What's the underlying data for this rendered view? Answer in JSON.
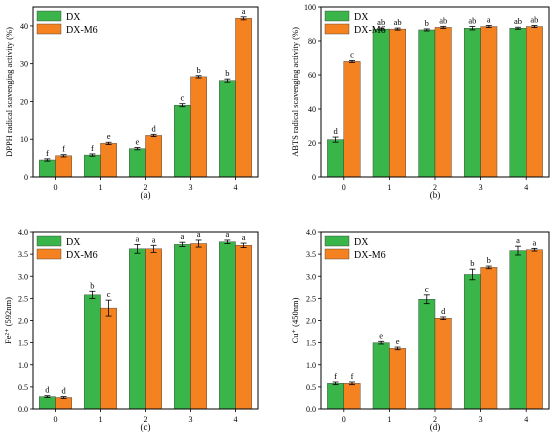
{
  "legend_labels": [
    "DX",
    "DX-M6"
  ],
  "colors": {
    "DX": "#3ab54a",
    "DX-M6": "#f58220",
    "axis": "#000000"
  },
  "chart_data": [
    {
      "type": "bar",
      "panel_label": "(a)",
      "ylabel": "DPPH radical scavenging activity (%)",
      "xlabel": "",
      "categories": [
        "0",
        "1",
        "2",
        "3",
        "4"
      ],
      "ylim": [
        0,
        45
      ],
      "yticks": [
        0,
        10,
        20,
        30,
        40
      ],
      "series": [
        {
          "name": "DX",
          "values": [
            4.5,
            5.8,
            7.5,
            19.0,
            25.5
          ],
          "errors": [
            0.3,
            0.3,
            0.3,
            0.4,
            0.4
          ],
          "letters": [
            "f",
            "f",
            "e",
            "c",
            "b"
          ]
        },
        {
          "name": "DX-M6",
          "values": [
            5.6,
            8.9,
            11.0,
            26.5,
            42.0
          ],
          "errors": [
            0.3,
            0.3,
            0.3,
            0.3,
            0.4
          ],
          "letters": [
            "f",
            "e",
            "d",
            "b",
            "a"
          ]
        }
      ]
    },
    {
      "type": "bar",
      "panel_label": "(b)",
      "ylabel": "ABTS radical scavenging activity (%)",
      "xlabel": "",
      "categories": [
        "0",
        "1",
        "2",
        "3",
        "4"
      ],
      "ylim": [
        0,
        100
      ],
      "yticks": [
        0,
        20,
        40,
        60,
        80,
        100
      ],
      "series": [
        {
          "name": "DX",
          "values": [
            22.0,
            87.0,
            86.5,
            87.5,
            87.5
          ],
          "errors": [
            1.5,
            0.6,
            0.6,
            1.0,
            0.6
          ],
          "letters": [
            "d",
            "ab",
            "b",
            "ab",
            "ab"
          ]
        },
        {
          "name": "DX-M6",
          "values": [
            68.0,
            87.0,
            88.0,
            88.5,
            88.5
          ],
          "errors": [
            0.6,
            0.6,
            0.6,
            0.6,
            0.6
          ],
          "letters": [
            "c",
            "ab",
            "ab",
            "a",
            "ab"
          ]
        }
      ]
    },
    {
      "type": "bar",
      "panel_label": "(c)",
      "ylabel": "Fe²⁺ (592nm)",
      "xlabel": "",
      "categories": [
        "0",
        "1",
        "2",
        "3",
        "4"
      ],
      "ylim": [
        0,
        4.0
      ],
      "yticks": [
        0.0,
        0.5,
        1.0,
        1.5,
        2.0,
        2.5,
        3.0,
        3.5,
        4.0
      ],
      "series": [
        {
          "name": "DX",
          "values": [
            0.28,
            2.58,
            3.62,
            3.72,
            3.78
          ],
          "errors": [
            0.02,
            0.08,
            0.1,
            0.05,
            0.04
          ],
          "letters": [
            "d",
            "b",
            "a",
            "a",
            "a"
          ]
        },
        {
          "name": "DX-M6",
          "values": [
            0.26,
            2.28,
            3.62,
            3.74,
            3.7
          ],
          "errors": [
            0.02,
            0.18,
            0.08,
            0.08,
            0.05
          ],
          "letters": [
            "d",
            "c",
            "a",
            "a",
            "a"
          ]
        }
      ]
    },
    {
      "type": "bar",
      "panel_label": "(d)",
      "ylabel": "Cu⁺ (450nm)",
      "xlabel": "",
      "categories": [
        "0",
        "1",
        "2",
        "3",
        "4"
      ],
      "ylim": [
        0,
        4.0
      ],
      "yticks": [
        0.0,
        0.5,
        1.0,
        1.5,
        2.0,
        2.5,
        3.0,
        3.5,
        4.0
      ],
      "series": [
        {
          "name": "DX",
          "values": [
            0.58,
            1.5,
            2.48,
            3.04,
            3.58
          ],
          "errors": [
            0.03,
            0.03,
            0.1,
            0.12,
            0.1
          ],
          "letters": [
            "f",
            "e",
            "c",
            "b",
            "a"
          ]
        },
        {
          "name": "DX-M6",
          "values": [
            0.58,
            1.37,
            2.05,
            3.2,
            3.6
          ],
          "errors": [
            0.03,
            0.03,
            0.03,
            0.03,
            0.03
          ],
          "letters": [
            "f",
            "e",
            "d",
            "b",
            "a"
          ]
        }
      ]
    }
  ]
}
